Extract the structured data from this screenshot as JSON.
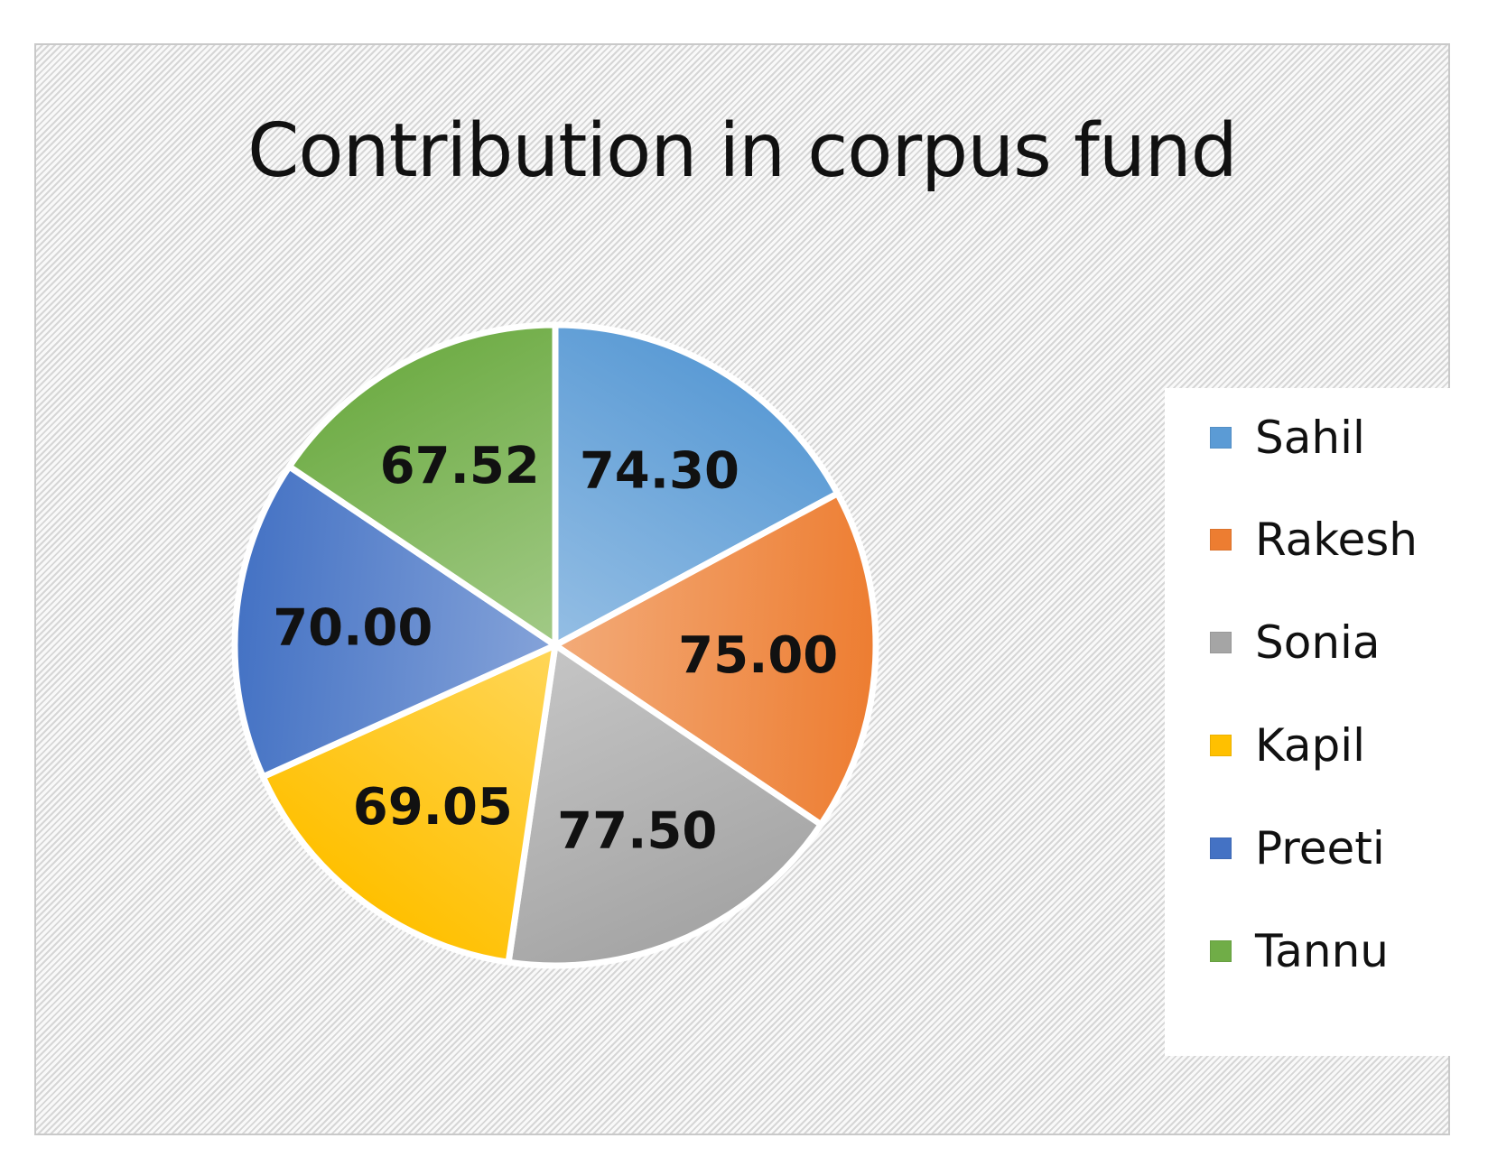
{
  "chart_data": {
    "type": "pie",
    "title": "Contribution in  corpus fund",
    "categories": [
      "Sahil",
      "Rakesh",
      "Sonia",
      "Kapil",
      "Preeti",
      "Tannu"
    ],
    "values": [
      74.3,
      75.0,
      77.5,
      69.05,
      70.0,
      67.52
    ],
    "value_labels": [
      "74.30",
      "75.00",
      "77.50",
      "69.05",
      "70.00",
      "67.52"
    ],
    "colors": [
      "#5b9bd5",
      "#ed7d31",
      "#a5a5a5",
      "#ffc000",
      "#4472c4",
      "#70ad47"
    ],
    "legend_position": "right",
    "start_angle": "12 o'clock, clockwise"
  }
}
